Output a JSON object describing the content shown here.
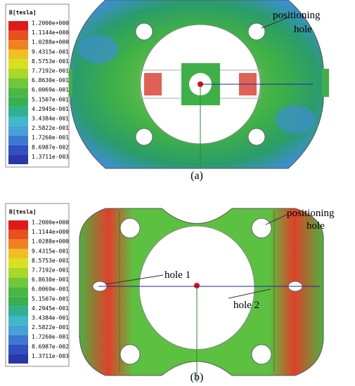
{
  "panels": [
    {
      "legend": {
        "title": "B[tesla]",
        "labels": [
          "1.2000e+000",
          "1.1144e+000",
          "1.0288e+000",
          "9.4315e-001",
          "8.5753e-001",
          "7.7192e-001",
          "6.8630e-001",
          "6.0069e-001",
          "5.1507e-001",
          "4.2945e-001",
          "3.4384e-001",
          "2.5822e-001",
          "1.7260e-001",
          "8.6987e-002",
          "1.3711e-003"
        ]
      },
      "annotations": [
        "positioning",
        "hole"
      ],
      "caption": "(a)"
    },
    {
      "legend": {
        "title": "B[tesla]",
        "labels": [
          "1.2000e+000",
          "1.1144e+000",
          "1.0288e+000",
          "9.4315e-001",
          "8.5753e-001",
          "7.7192e-001",
          "6.8630e-001",
          "6.0069e-001",
          "5.1507e-001",
          "4.2945e-001",
          "3.4384e-001",
          "2.5822e-001",
          "1.7260e-001",
          "8.6987e-002",
          "1.3711e-003"
        ]
      },
      "annotations": [
        "positioning",
        "hole",
        "hole 1",
        "hole 2"
      ],
      "caption": "(b)"
    }
  ]
}
